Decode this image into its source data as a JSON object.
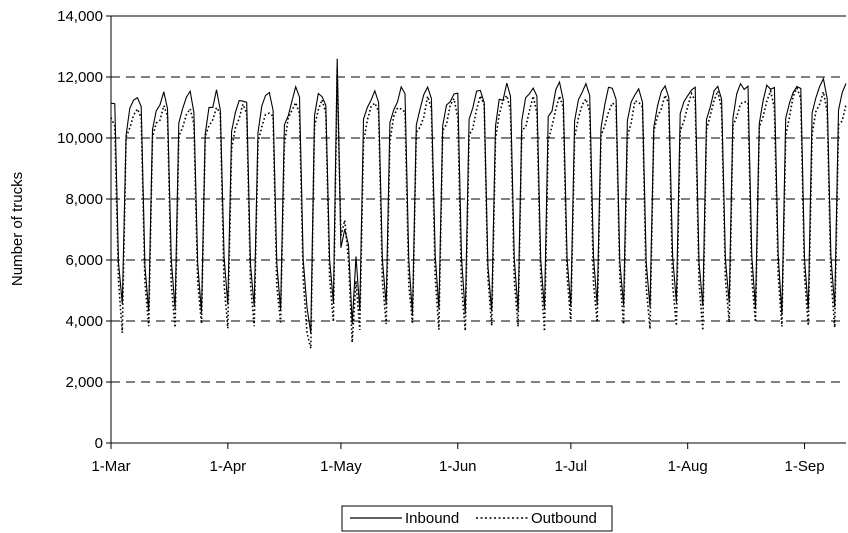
{
  "chart_data": {
    "type": "line",
    "title": "",
    "xlabel": "",
    "ylabel": "Number of trucks",
    "ylim": [
      0,
      14000
    ],
    "yticks": [
      0,
      2000,
      4000,
      6000,
      8000,
      10000,
      12000,
      14000
    ],
    "ytick_labels": [
      "0",
      "2,000",
      "4,000",
      "6,000",
      "8,000",
      "10,000",
      "12,000",
      "14,000"
    ],
    "xticks": [
      "1-Mar",
      "1-Apr",
      "1-May",
      "1-Jun",
      "1-Jul",
      "1-Aug",
      "1-Sep"
    ],
    "x_start": "1-Mar",
    "x_end": "12-Sep",
    "gridlines": "horizontal dashed",
    "legend": {
      "position": "bottom-center"
    },
    "series": [
      {
        "name": "Inbound",
        "style": "solid",
        "color": "#000000",
        "values": []
      },
      {
        "name": "Outbound",
        "style": "dotted",
        "color": "#000000",
        "values": []
      }
    ],
    "weekly_pattern": {
      "weekday_level_inbound": [
        10200,
        10800,
        11100,
        11300,
        11000
      ],
      "weekday_level_outbound": [
        9800,
        10300,
        10700,
        10900,
        10600
      ],
      "weekend_low_inbound": [
        6000,
        4400
      ],
      "weekend_low_outbound": [
        5300,
        3800
      ]
    }
  }
}
